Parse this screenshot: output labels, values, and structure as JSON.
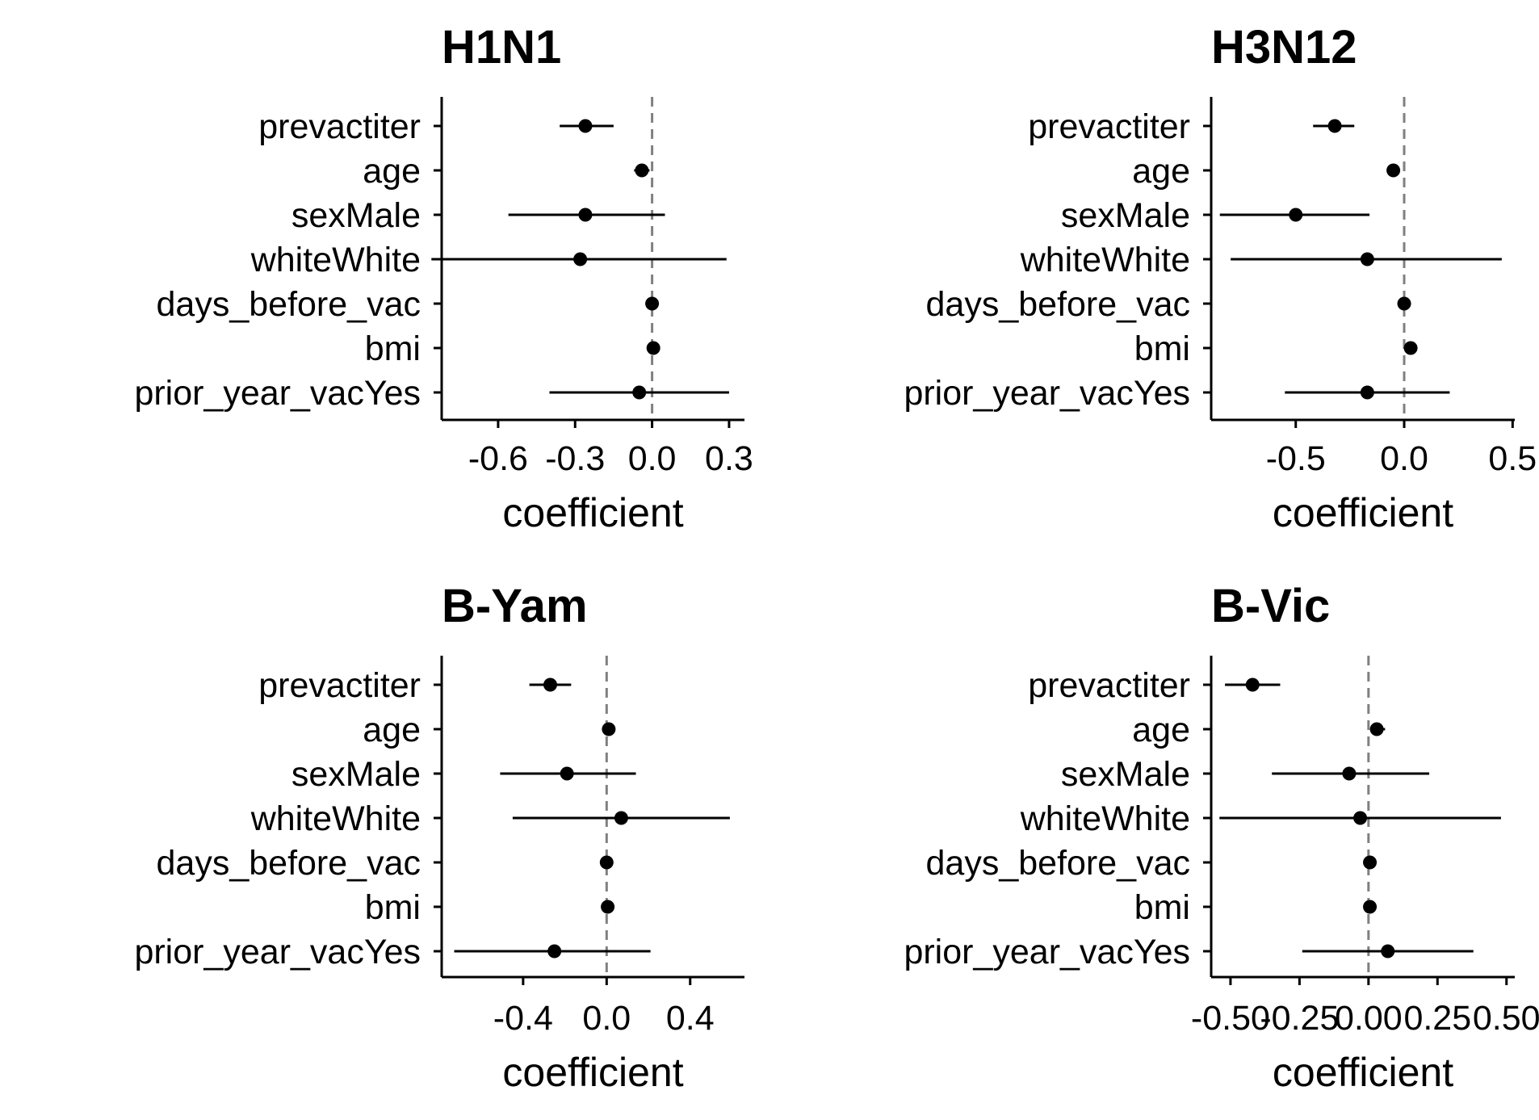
{
  "chart_data": [
    {
      "type": "scatter",
      "subtype": "coefficient-plot-with-error-bars",
      "title": "H1N1",
      "xlabel": "coefficient",
      "ylabel": "",
      "categories": [
        "prevactiter",
        "age",
        "sexMale",
        "whiteWhite",
        "days_before_vac",
        "bmi",
        "prior_year_vacYes"
      ],
      "estimates": [
        -0.26,
        -0.04,
        -0.26,
        -0.28,
        0.0,
        0.005,
        -0.05
      ],
      "lower": [
        -0.36,
        -0.07,
        -0.56,
        -0.86,
        -0.005,
        -0.005,
        -0.4
      ],
      "upper": [
        -0.15,
        -0.01,
        0.05,
        0.29,
        0.005,
        0.01,
        0.3
      ],
      "xticks": [
        -0.6,
        -0.3,
        0.0,
        0.3
      ],
      "xtick_labels": [
        "-0.6",
        "-0.3",
        "0.0",
        "0.3"
      ],
      "xlim": [
        -0.82,
        0.36
      ],
      "reference_line": 0,
      "grid": false,
      "legend": "none"
    },
    {
      "type": "scatter",
      "subtype": "coefficient-plot-with-error-bars",
      "title": "H3N12",
      "xlabel": "coefficient",
      "ylabel": "",
      "categories": [
        "prevactiter",
        "age",
        "sexMale",
        "whiteWhite",
        "days_before_vac",
        "bmi",
        "prior_year_vacYes"
      ],
      "estimates": [
        -0.32,
        -0.05,
        -0.5,
        -0.17,
        0.0,
        0.03,
        -0.17
      ],
      "lower": [
        -0.42,
        -0.08,
        -0.85,
        -0.8,
        -0.005,
        0.02,
        -0.55
      ],
      "upper": [
        -0.23,
        -0.02,
        -0.16,
        0.45,
        0.005,
        0.04,
        0.21
      ],
      "xticks": [
        -0.5,
        0.0,
        0.5
      ],
      "xtick_labels": [
        "-0.5",
        "0.0",
        "0.5"
      ],
      "xlim": [
        -0.89,
        0.51
      ],
      "reference_line": 0,
      "grid": false,
      "legend": "none"
    },
    {
      "type": "scatter",
      "subtype": "coefficient-plot-with-error-bars",
      "title": "B-Yam",
      "xlabel": "coefficient",
      "ylabel": "",
      "categories": [
        "prevactiter",
        "age",
        "sexMale",
        "whiteWhite",
        "days_before_vac",
        "bmi",
        "prior_year_vacYes"
      ],
      "estimates": [
        -0.27,
        0.01,
        -0.19,
        0.07,
        0.0,
        0.005,
        -0.25
      ],
      "lower": [
        -0.37,
        0.0,
        -0.51,
        -0.45,
        -0.005,
        -0.005,
        -0.73
      ],
      "upper": [
        -0.17,
        0.02,
        0.14,
        0.59,
        0.005,
        0.01,
        0.21
      ],
      "xticks": [
        -0.4,
        0.0,
        0.4
      ],
      "xtick_labels": [
        "-0.4",
        "0.0",
        "0.4"
      ],
      "xlim": [
        -0.79,
        0.66
      ],
      "reference_line": 0,
      "grid": false,
      "legend": "none"
    },
    {
      "type": "scatter",
      "subtype": "coefficient-plot-with-error-bars",
      "title": "B-Vic",
      "xlabel": "coefficient",
      "ylabel": "",
      "categories": [
        "prevactiter",
        "age",
        "sexMale",
        "whiteWhite",
        "days_before_vac",
        "bmi",
        "prior_year_vacYes"
      ],
      "estimates": [
        -0.42,
        0.03,
        -0.07,
        -0.03,
        0.005,
        0.005,
        0.07
      ],
      "lower": [
        -0.52,
        0.01,
        -0.35,
        -0.54,
        -0.005,
        -0.005,
        -0.24
      ],
      "upper": [
        -0.32,
        0.06,
        0.22,
        0.48,
        0.01,
        0.01,
        0.38
      ],
      "xticks": [
        -0.5,
        -0.25,
        0.0,
        0.25,
        0.5
      ],
      "xtick_labels": [
        "-0.50",
        "-0.25",
        "0.00",
        "0.25",
        "0.50"
      ],
      "xlim": [
        -0.57,
        0.53
      ],
      "reference_line": 0,
      "grid": false,
      "legend": "none"
    }
  ],
  "colors": {
    "point": "#000000",
    "errorbar": "#000000",
    "reference_line": "#808080",
    "axis": "#000000"
  }
}
